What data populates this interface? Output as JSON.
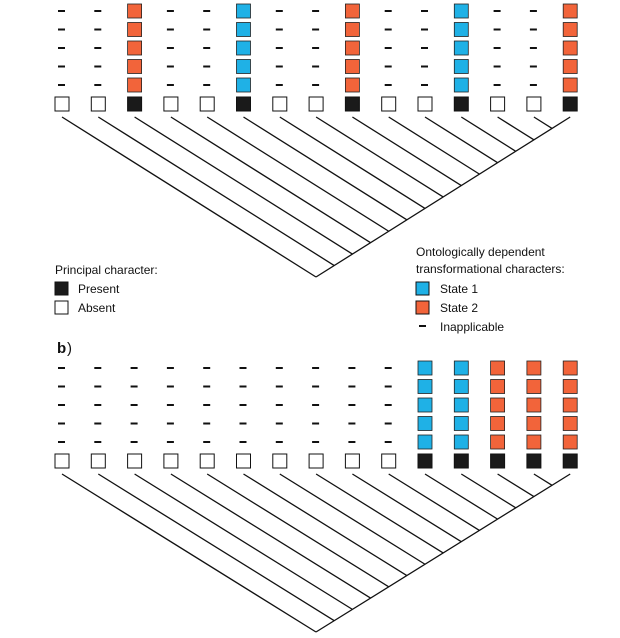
{
  "colors": {
    "present": "#1a1a1a",
    "absent": "#ffffff",
    "state1": "#1fb1e6",
    "state2": "#f2643a",
    "line": "#111111"
  },
  "panel_a": {
    "label": "",
    "principal": [
      "absent",
      "absent",
      "present",
      "absent",
      "absent",
      "present",
      "absent",
      "absent",
      "present",
      "absent",
      "absent",
      "present",
      "absent",
      "absent",
      "present"
    ],
    "dependent": [
      "-",
      "-",
      "state2",
      "-",
      "-",
      "state1",
      "-",
      "-",
      "state2",
      "-",
      "-",
      "state1",
      "-",
      "-",
      "state2"
    ]
  },
  "panel_b": {
    "label": "b",
    "principal": [
      "absent",
      "absent",
      "absent",
      "absent",
      "absent",
      "absent",
      "absent",
      "absent",
      "absent",
      "absent",
      "present",
      "present",
      "present",
      "present",
      "present"
    ],
    "dependent": [
      "-",
      "-",
      "-",
      "-",
      "-",
      "-",
      "-",
      "-",
      "-",
      "-",
      "state1",
      "state1",
      "state2",
      "state2",
      "state2"
    ]
  },
  "legend_principal": {
    "title": "Principal character:",
    "items": [
      {
        "key": "present",
        "label": "Present"
      },
      {
        "key": "absent",
        "label": "Absent"
      }
    ]
  },
  "legend_dependent": {
    "title_line1": "Ontologically dependent",
    "title_line2": "transformational characters:",
    "items": [
      {
        "key": "state1",
        "label": "State 1"
      },
      {
        "key": "state2",
        "label": "State 2"
      },
      {
        "key": "dash",
        "label": "Inapplicable"
      }
    ]
  }
}
